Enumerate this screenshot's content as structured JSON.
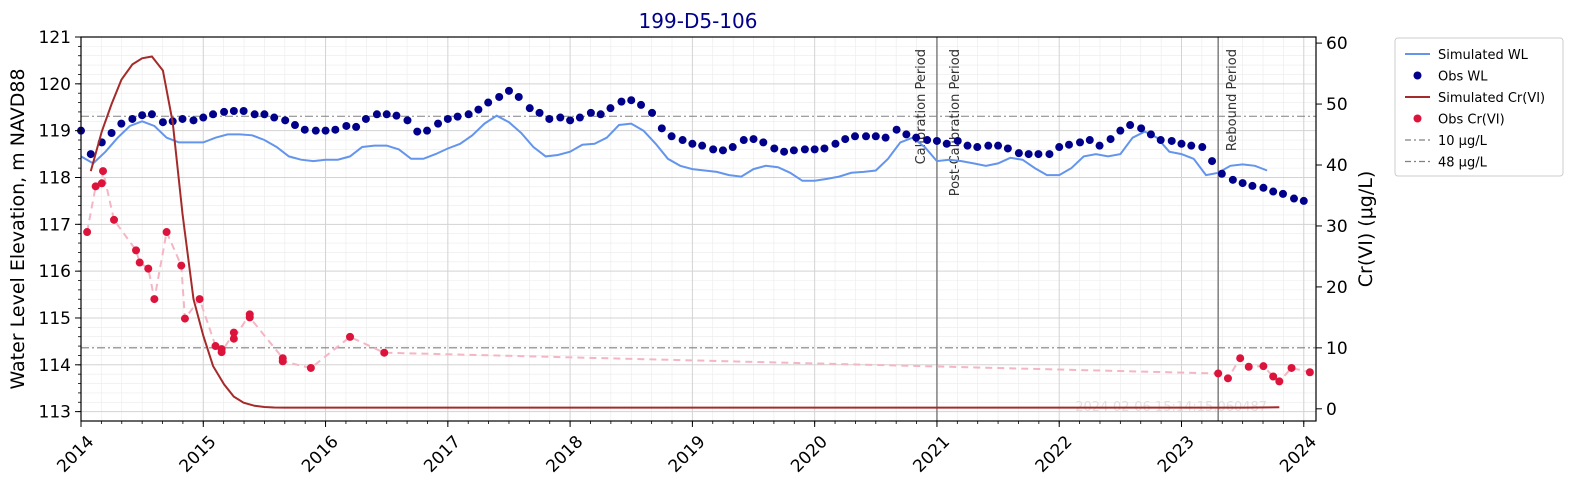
{
  "chart_data": {
    "type": "line",
    "title": "199-D5-106",
    "xlabel": "",
    "ylabel_left": "Water Level Elevation, m NAVD88",
    "ylabel_right": "Cr(VI) (μg/L)",
    "xlim": [
      2014.0,
      2024.1
    ],
    "ylim_left": [
      112.8,
      121.0
    ],
    "ylim_right": [
      -2.0,
      61.0
    ],
    "x_ticks": [
      2014,
      2015,
      2016,
      2017,
      2018,
      2019,
      2020,
      2021,
      2022,
      2023,
      2024
    ],
    "x_tick_labels": [
      "2014",
      "2015",
      "2016",
      "2017",
      "2018",
      "2019",
      "2020",
      "2021",
      "2022",
      "2023",
      "2024"
    ],
    "y_left_ticks": [
      113,
      114,
      115,
      116,
      117,
      118,
      119,
      120,
      121
    ],
    "y_left_tick_labels": [
      "113",
      "114",
      "115",
      "116",
      "117",
      "118",
      "119",
      "120",
      "121"
    ],
    "y_right_ticks": [
      0,
      10,
      20,
      30,
      40,
      50,
      60
    ],
    "y_right_tick_labels": [
      "0",
      "10",
      "20",
      "30",
      "40",
      "50",
      "60"
    ],
    "grid": true,
    "legend_position": "outside-right-top",
    "watermark": "2024-02-06 15:14:15.060487",
    "period_lines": [
      {
        "x": 2021.0,
        "labels": [
          "Calibration Period",
          "Post-Calibration Period"
        ]
      },
      {
        "x": 2023.3,
        "labels": [
          "Rebound Period"
        ]
      }
    ],
    "hlines": [
      {
        "name": "10 μg/L",
        "y": 10,
        "axis": "right",
        "color": "#808080"
      },
      {
        "name": "48 μg/L",
        "y": 48,
        "axis": "right",
        "color": "#808080"
      }
    ],
    "series": [
      {
        "name": "Simulated WL",
        "axis": "left",
        "kind": "line",
        "color": "#6495ed",
        "x": [
          2014.0,
          2014.1,
          2014.2,
          2014.3,
          2014.4,
          2014.5,
          2014.6,
          2014.7,
          2014.8,
          2014.9,
          2015.0,
          2015.1,
          2015.2,
          2015.3,
          2015.4,
          2015.5,
          2015.6,
          2015.7,
          2015.8,
          2015.9,
          2016.0,
          2016.1,
          2016.2,
          2016.3,
          2016.4,
          2016.5,
          2016.6,
          2016.7,
          2016.8,
          2016.9,
          2017.0,
          2017.1,
          2017.2,
          2017.3,
          2017.4,
          2017.5,
          2017.6,
          2017.7,
          2017.8,
          2017.9,
          2018.0,
          2018.1,
          2018.2,
          2018.3,
          2018.4,
          2018.5,
          2018.6,
          2018.7,
          2018.8,
          2018.9,
          2019.0,
          2019.1,
          2019.2,
          2019.3,
          2019.4,
          2019.5,
          2019.6,
          2019.7,
          2019.8,
          2019.9,
          2020.0,
          2020.1,
          2020.2,
          2020.3,
          2020.4,
          2020.5,
          2020.6,
          2020.7,
          2020.8,
          2020.9,
          2021.0,
          2021.1,
          2021.2,
          2021.3,
          2021.4,
          2021.5,
          2021.6,
          2021.7,
          2021.8,
          2021.9,
          2022.0,
          2022.1,
          2022.2,
          2022.3,
          2022.4,
          2022.5,
          2022.6,
          2022.7,
          2022.8,
          2022.9,
          2023.0,
          2023.1,
          2023.2,
          2023.3,
          2023.4,
          2023.5,
          2023.6,
          2023.7
        ],
        "y": [
          118.45,
          118.3,
          118.55,
          118.85,
          119.1,
          119.2,
          119.1,
          118.85,
          118.75,
          118.75,
          118.75,
          118.85,
          118.92,
          118.92,
          118.9,
          118.8,
          118.65,
          118.45,
          118.38,
          118.35,
          118.38,
          118.38,
          118.45,
          118.65,
          118.68,
          118.68,
          118.6,
          118.4,
          118.4,
          118.5,
          118.62,
          118.72,
          118.9,
          119.15,
          119.32,
          119.18,
          118.95,
          118.65,
          118.45,
          118.48,
          118.55,
          118.7,
          118.72,
          118.85,
          119.12,
          119.15,
          119.0,
          118.72,
          118.4,
          118.25,
          118.18,
          118.15,
          118.12,
          118.05,
          118.02,
          118.18,
          118.25,
          118.22,
          118.1,
          117.93,
          117.93,
          117.97,
          118.02,
          118.1,
          118.12,
          118.15,
          118.4,
          118.75,
          118.85,
          118.65,
          118.35,
          118.38,
          118.35,
          118.3,
          118.25,
          118.3,
          118.42,
          118.38,
          118.2,
          118.05,
          118.05,
          118.2,
          118.45,
          118.5,
          118.45,
          118.5,
          118.85,
          118.98,
          118.85,
          118.55,
          118.5,
          118.4,
          118.05,
          118.1,
          118.25,
          118.28,
          118.25,
          118.15
        ]
      },
      {
        "name": "Obs WL",
        "axis": "left",
        "kind": "scatter",
        "color": "#00008b",
        "x": [
          2014.0,
          2014.08,
          2014.17,
          2014.25,
          2014.33,
          2014.42,
          2014.5,
          2014.58,
          2014.67,
          2014.75,
          2014.83,
          2014.92,
          2015.0,
          2015.08,
          2015.17,
          2015.25,
          2015.33,
          2015.42,
          2015.5,
          2015.58,
          2015.67,
          2015.75,
          2015.83,
          2015.92,
          2016.0,
          2016.08,
          2016.17,
          2016.25,
          2016.33,
          2016.42,
          2016.5,
          2016.58,
          2016.67,
          2016.75,
          2016.83,
          2016.92,
          2017.0,
          2017.08,
          2017.17,
          2017.25,
          2017.33,
          2017.42,
          2017.5,
          2017.58,
          2017.67,
          2017.75,
          2017.83,
          2017.92,
          2018.0,
          2018.08,
          2018.17,
          2018.25,
          2018.33,
          2018.42,
          2018.5,
          2018.58,
          2018.67,
          2018.75,
          2018.83,
          2018.92,
          2019.0,
          2019.08,
          2019.17,
          2019.25,
          2019.33,
          2019.42,
          2019.5,
          2019.58,
          2019.67,
          2019.75,
          2019.83,
          2019.92,
          2020.0,
          2020.08,
          2020.17,
          2020.25,
          2020.33,
          2020.42,
          2020.5,
          2020.58,
          2020.67,
          2020.75,
          2020.83,
          2020.92,
          2021.0,
          2021.08,
          2021.17,
          2021.25,
          2021.33,
          2021.42,
          2021.5,
          2021.58,
          2021.67,
          2021.75,
          2021.83,
          2021.92,
          2022.0,
          2022.08,
          2022.17,
          2022.25,
          2022.33,
          2022.42,
          2022.5,
          2022.58,
          2022.67,
          2022.75,
          2022.83,
          2022.92,
          2023.0,
          2023.08,
          2023.17,
          2023.25,
          2023.33,
          2023.42,
          2023.5,
          2023.58,
          2023.67,
          2023.75,
          2023.83,
          2023.92,
          2024.0
        ],
        "y": [
          119.0,
          118.5,
          118.75,
          118.95,
          119.15,
          119.25,
          119.33,
          119.35,
          119.18,
          119.2,
          119.25,
          119.22,
          119.28,
          119.35,
          119.4,
          119.42,
          119.42,
          119.35,
          119.35,
          119.28,
          119.22,
          119.12,
          119.02,
          119.0,
          119.0,
          119.02,
          119.1,
          119.08,
          119.25,
          119.35,
          119.35,
          119.32,
          119.22,
          118.98,
          119.0,
          119.15,
          119.25,
          119.3,
          119.35,
          119.45,
          119.6,
          119.72,
          119.85,
          119.72,
          119.48,
          119.38,
          119.25,
          119.28,
          119.22,
          119.28,
          119.38,
          119.35,
          119.48,
          119.62,
          119.65,
          119.55,
          119.38,
          119.05,
          118.88,
          118.8,
          118.72,
          118.68,
          118.6,
          118.58,
          118.65,
          118.8,
          118.82,
          118.75,
          118.62,
          118.55,
          118.58,
          118.6,
          118.6,
          118.62,
          118.72,
          118.82,
          118.88,
          118.88,
          118.88,
          118.85,
          119.02,
          118.92,
          118.85,
          118.8,
          118.78,
          118.72,
          118.78,
          118.68,
          118.65,
          118.68,
          118.68,
          118.62,
          118.52,
          118.5,
          118.5,
          118.5,
          118.65,
          118.7,
          118.75,
          118.8,
          118.68,
          118.82,
          119.0,
          119.12,
          119.05,
          118.92,
          118.8,
          118.78,
          118.72,
          118.68,
          118.65,
          118.35,
          118.08,
          117.95,
          117.88,
          117.82,
          117.78,
          117.7,
          117.65,
          117.55,
          117.5
        ]
      },
      {
        "name": "Simulated Cr(VI)",
        "axis": "right",
        "kind": "line",
        "color": "#a52a2a",
        "x": [
          2014.08,
          2014.17,
          2014.25,
          2014.33,
          2014.42,
          2014.5,
          2014.58,
          2014.67,
          2014.75,
          2014.83,
          2014.92,
          2015.0,
          2015.08,
          2015.17,
          2015.25,
          2015.33,
          2015.42,
          2015.5,
          2015.58,
          2015.67,
          2015.75,
          2016.0,
          2017.0,
          2018.0,
          2019.0,
          2020.0,
          2021.0,
          2022.0,
          2023.0,
          2023.5,
          2023.8
        ],
        "y": [
          39,
          45.5,
          50,
          54,
          56.5,
          57.5,
          57.8,
          55.5,
          47,
          32,
          18,
          12,
          7,
          4,
          2,
          1,
          0.5,
          0.3,
          0.22,
          0.2,
          0.2,
          0.2,
          0.2,
          0.2,
          0.2,
          0.2,
          0.2,
          0.2,
          0.2,
          0.2,
          0.25
        ]
      },
      {
        "name": "Obs Cr(VI)",
        "axis": "right",
        "kind": "scatter-dashed",
        "color": "#dc143c",
        "x": [
          2014.05,
          2014.12,
          2014.17,
          2014.18,
          2014.27,
          2014.45,
          2014.48,
          2014.55,
          2014.6,
          2014.7,
          2014.82,
          2014.85,
          2014.97,
          2015.1,
          2015.15,
          2015.15,
          2015.25,
          2015.25,
          2015.38,
          2015.38,
          2015.65,
          2015.65,
          2015.88,
          2016.2,
          2016.48,
          2023.3,
          2023.38,
          2023.48,
          2023.55,
          2023.67,
          2023.75,
          2023.8,
          2023.9,
          2024.05
        ],
        "y": [
          29,
          36.5,
          37,
          39,
          31,
          26,
          24,
          23,
          18,
          29,
          23.5,
          14.8,
          18,
          10.3,
          9.8,
          9.3,
          12.5,
          11.5,
          15.5,
          15.0,
          8.3,
          7.8,
          6.7,
          11.8,
          9.2,
          5.8,
          5.0,
          8.3,
          6.9,
          7.0,
          5.3,
          4.5,
          6.7,
          6.0
        ]
      }
    ]
  },
  "legend": [
    {
      "label": "Simulated WL",
      "kind": "line",
      "color": "#6495ed"
    },
    {
      "label": "Obs WL",
      "kind": "marker",
      "color": "#00008b"
    },
    {
      "label": "Simulated Cr(VI)",
      "kind": "line",
      "color": "#a52a2a"
    },
    {
      "label": "Obs Cr(VI)",
      "kind": "marker",
      "color": "#dc143c"
    },
    {
      "label": "10 μg/L",
      "kind": "dashdot",
      "color": "#808080"
    },
    {
      "label": "48 μg/L",
      "kind": "dashdot",
      "color": "#808080"
    }
  ]
}
